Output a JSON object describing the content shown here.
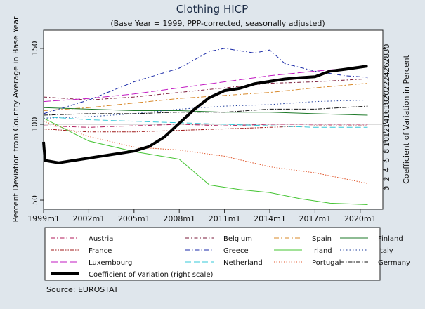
{
  "chart_data": {
    "type": "line",
    "title": "Clothing HICP",
    "subtitle": "(Base Year = 1999, PPP-corrected, seasonally adjusted)",
    "ylabel": "Percent Deviation from Country Average in Base Year",
    "y2label": "Coefficient of Variation in Percent",
    "source": "Source: EUROSTAT",
    "xlim": [
      1999,
      2021.5
    ],
    "ylim": [
      44,
      162
    ],
    "y2lim": [
      -4.5,
      34
    ],
    "x_ticks": [
      {
        "value": 1999,
        "label": "1999m1"
      },
      {
        "value": 2002,
        "label": "2002m1"
      },
      {
        "value": 2005,
        "label": "2005m1"
      },
      {
        "value": 2008,
        "label": "2008m1"
      },
      {
        "value": 2011,
        "label": "2011m1"
      },
      {
        "value": 2014,
        "label": "2014m1"
      },
      {
        "value": 2017,
        "label": "2017m1"
      },
      {
        "value": 2020,
        "label": "2020m1"
      }
    ],
    "y_ticks": [
      50,
      100,
      150
    ],
    "y2_ticks": [
      0,
      2,
      4,
      6,
      8,
      10,
      12,
      14,
      16,
      18,
      20,
      22,
      24,
      26,
      28,
      30
    ],
    "reference_line": 100,
    "series": [
      {
        "name": "Austria",
        "axis": "left",
        "color": "#b01a5a",
        "dash": "6 3 1.5 3",
        "points": [
          [
            1999,
            99
          ],
          [
            2002,
            98
          ],
          [
            2005,
            99
          ],
          [
            2008,
            100
          ],
          [
            2011,
            99
          ],
          [
            2014,
            100
          ],
          [
            2017,
            100
          ],
          [
            2020.5,
            100
          ]
        ]
      },
      {
        "name": "Belgium",
        "axis": "left",
        "color": "#7a1a3a",
        "dash": "5 3 1.5 3",
        "points": [
          [
            1999,
            118
          ],
          [
            2002,
            116
          ],
          [
            2005,
            118
          ],
          [
            2008,
            121
          ],
          [
            2011,
            124
          ],
          [
            2014,
            127
          ],
          [
            2017,
            128
          ],
          [
            2020.5,
            130
          ]
        ]
      },
      {
        "name": "Spain",
        "axis": "left",
        "color": "#d8892a",
        "dash": "7 3 2 3",
        "points": [
          [
            1999,
            109
          ],
          [
            2002,
            111
          ],
          [
            2005,
            114
          ],
          [
            2008,
            117
          ],
          [
            2011,
            119
          ],
          [
            2014,
            121
          ],
          [
            2017,
            124
          ],
          [
            2020.5,
            127
          ]
        ]
      },
      {
        "name": "Finland",
        "axis": "left",
        "color": "#1e7a2a",
        "dash": "",
        "points": [
          [
            1999,
            111
          ],
          [
            2002,
            110
          ],
          [
            2005,
            109
          ],
          [
            2008,
            109
          ],
          [
            2011,
            108
          ],
          [
            2014,
            108
          ],
          [
            2017,
            107
          ],
          [
            2020.5,
            106
          ]
        ]
      },
      {
        "name": "France",
        "axis": "left",
        "color": "#a01a1a",
        "dash": "5 2 1.5 2 1.5 2",
        "points": [
          [
            1999,
            97
          ],
          [
            2002,
            95
          ],
          [
            2005,
            95
          ],
          [
            2008,
            96
          ],
          [
            2011,
            97
          ],
          [
            2014,
            98
          ],
          [
            2017,
            99
          ],
          [
            2020.5,
            99
          ]
        ]
      },
      {
        "name": "Greece",
        "axis": "left",
        "color": "#1a2aa8",
        "dash": "6 3 1.5 3",
        "points": [
          [
            1999,
            107
          ],
          [
            2002,
            116
          ],
          [
            2005,
            128
          ],
          [
            2008,
            137
          ],
          [
            2010,
            148
          ],
          [
            2011,
            150
          ],
          [
            2013,
            147
          ],
          [
            2014,
            149
          ],
          [
            2015,
            140
          ],
          [
            2017,
            135
          ],
          [
            2019,
            132
          ],
          [
            2020.5,
            131
          ]
        ]
      },
      {
        "name": "Irland",
        "axis": "left",
        "color": "#44c432",
        "dash": "",
        "points": [
          [
            1999,
            104
          ],
          [
            2002,
            89
          ],
          [
            2005,
            82
          ],
          [
            2008,
            77
          ],
          [
            2010,
            60
          ],
          [
            2012,
            57
          ],
          [
            2014,
            55
          ],
          [
            2016,
            51
          ],
          [
            2018,
            48
          ],
          [
            2020.5,
            47
          ]
        ]
      },
      {
        "name": "Italy",
        "axis": "left",
        "color": "#1a3a9a",
        "dash": "1.5 3",
        "points": [
          [
            1999,
            104
          ],
          [
            2002,
            105
          ],
          [
            2005,
            107
          ],
          [
            2008,
            110
          ],
          [
            2011,
            112
          ],
          [
            2014,
            113
          ],
          [
            2017,
            115
          ],
          [
            2020.5,
            116
          ]
        ]
      },
      {
        "name": "Luxembourg",
        "axis": "left",
        "color": "#c21ac2",
        "dash": "10 4",
        "points": [
          [
            1999,
            115
          ],
          [
            2002,
            117
          ],
          [
            2005,
            120
          ],
          [
            2008,
            124
          ],
          [
            2011,
            128
          ],
          [
            2014,
            132
          ],
          [
            2017,
            135
          ],
          [
            2020.5,
            138
          ]
        ]
      },
      {
        "name": "Netherland",
        "axis": "left",
        "color": "#34c8d8",
        "dash": "8 4",
        "points": [
          [
            1999,
            105
          ],
          [
            2002,
            103
          ],
          [
            2005,
            102
          ],
          [
            2008,
            101
          ],
          [
            2011,
            100
          ],
          [
            2014,
            99
          ],
          [
            2017,
            98
          ],
          [
            2020.5,
            98
          ]
        ]
      },
      {
        "name": "Portugal",
        "axis": "left",
        "color": "#e0562a",
        "dash": "1.5 2",
        "points": [
          [
            1999,
            102
          ],
          [
            2002,
            92
          ],
          [
            2005,
            85
          ],
          [
            2008,
            83
          ],
          [
            2011,
            79
          ],
          [
            2014,
            72
          ],
          [
            2017,
            68
          ],
          [
            2020.5,
            61
          ]
        ]
      },
      {
        "name": "Germany",
        "axis": "left",
        "color": "#111111",
        "dash": "6 2 1.5 2",
        "points": [
          [
            1999,
            106
          ],
          [
            2002,
            107
          ],
          [
            2005,
            107
          ],
          [
            2008,
            108
          ],
          [
            2011,
            108
          ],
          [
            2014,
            110
          ],
          [
            2017,
            110
          ],
          [
            2020.5,
            112
          ]
        ]
      },
      {
        "name": "Coefficient of Variation (right scale)",
        "axis": "right",
        "color": "#000000",
        "dash": "",
        "thick": true,
        "points": [
          [
            1999,
            10
          ],
          [
            1999.1,
            6
          ],
          [
            2000,
            5.5
          ],
          [
            2002,
            6.5
          ],
          [
            2005,
            8
          ],
          [
            2006,
            9
          ],
          [
            2007,
            11
          ],
          [
            2008,
            14
          ],
          [
            2009,
            17
          ],
          [
            2010,
            19.5
          ],
          [
            2011,
            21
          ],
          [
            2012,
            21.5
          ],
          [
            2013,
            22.5
          ],
          [
            2014,
            23
          ],
          [
            2015,
            23.5
          ],
          [
            2016,
            23.8
          ],
          [
            2017,
            24
          ],
          [
            2018,
            25.2
          ],
          [
            2019,
            25.6
          ],
          [
            2020.5,
            26.3
          ]
        ]
      }
    ]
  }
}
